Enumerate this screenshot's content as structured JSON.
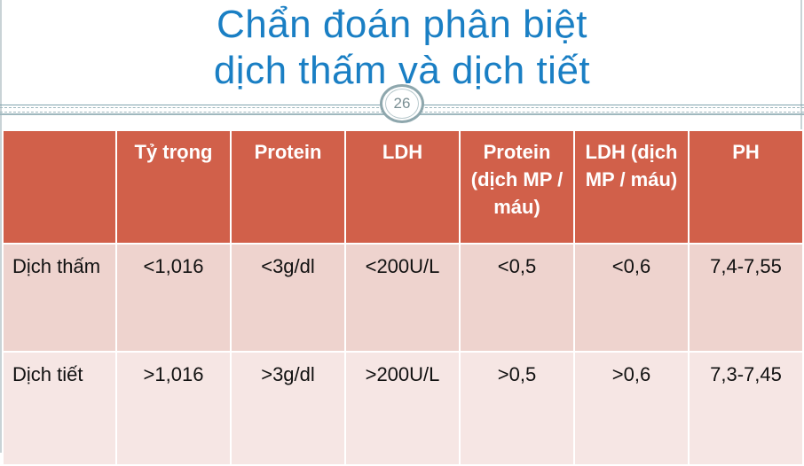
{
  "slide": {
    "title_line1": "Chẩn đoán phân biệt",
    "title_line2": "dịch thấm và dịch tiết",
    "page_number": "26"
  },
  "table": {
    "headers": [
      "",
      "Tỷ trọng",
      "Protein",
      "LDH",
      "Protein (dịch MP / máu)",
      "LDH (dịch MP / máu)",
      "PH"
    ],
    "rows": [
      [
        "Dịch thấm",
        "<1,016",
        "<3g/dl",
        "<200U/L",
        "<0,5",
        "<0,6",
        "7,4-7,55"
      ],
      [
        "Dịch tiết",
        ">1,016",
        ">3g/dl",
        ">200U/L",
        ">0,5",
        ">0,6",
        "7,3-7,45"
      ]
    ]
  },
  "colors": {
    "title": "#1a7fc4",
    "header_bg": "#d1604a",
    "row1_bg": "#eed3ce",
    "row2_bg": "#f6e6e4"
  }
}
